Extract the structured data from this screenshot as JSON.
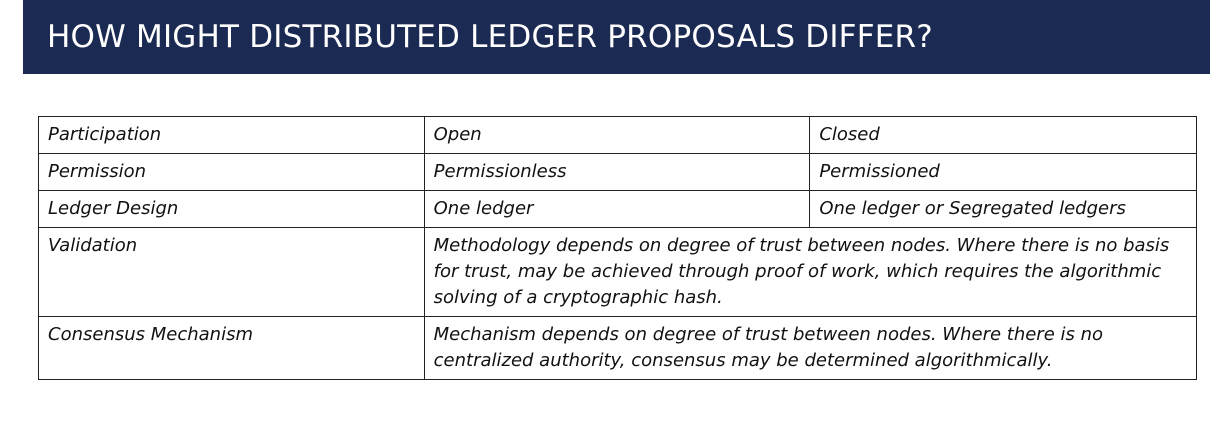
{
  "title": "HOW MIGHT DISTRIBUTED LEDGER PROPOSALS DIFFER?",
  "colors": {
    "title_bar": "#1b2a52",
    "title_text": "#ffffff",
    "border": "#222222"
  },
  "table": {
    "rows": [
      {
        "label": "Participation",
        "col2": "Open",
        "col3": "Closed"
      },
      {
        "label": "Permission",
        "col2": "Permissionless",
        "col3": "Permissioned"
      },
      {
        "label": "Ledger Design",
        "col2": "One ledger",
        "col3": "One ledger or Segregated ledgers"
      },
      {
        "label": "Validation",
        "merged": "Methodology depends on degree of trust between nodes. Where there is no basis for trust, may be achieved through proof of work, which requires the algorithmic solving of a cryptographic hash."
      },
      {
        "label": "Consensus Mechanism",
        "merged": "Mechanism depends on degree of trust between nodes. Where there is no centralized authority, consensus may be determined algorithmically."
      }
    ]
  }
}
